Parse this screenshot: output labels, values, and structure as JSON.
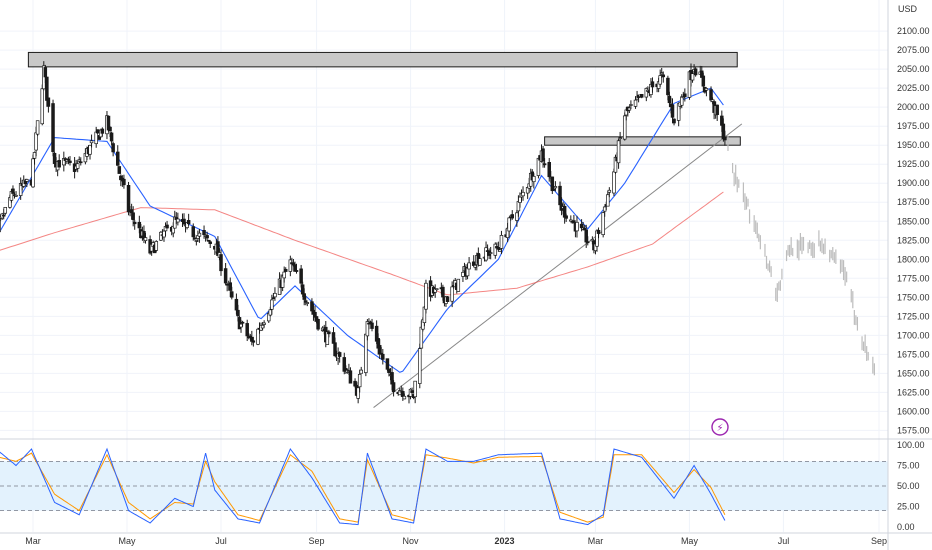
{
  "chart_data": {
    "type": "candlestick",
    "symbol_currency": "USD",
    "price_axis": {
      "range": [
        1565,
        2112
      ],
      "ticks": [
        "2100.00",
        "2075.00",
        "2050.00",
        "2025.00",
        "2000.00",
        "1975.00",
        "1950.00",
        "1925.00",
        "1900.00",
        "1875.00",
        "1850.00",
        "1825.00",
        "1800.00",
        "1775.00",
        "1750.00",
        "1725.00",
        "1700.00",
        "1675.00",
        "1650.00",
        "1625.00",
        "1600.00",
        "1575.00"
      ]
    },
    "x_axis": {
      "labels": [
        "Mar",
        "May",
        "Jul",
        "Sep",
        "Nov",
        "2023",
        "Mar",
        "May",
        "Jul",
        "Sep"
      ],
      "label_dates": [
        "2022-03-01",
        "2022-05-01",
        "2022-07-01",
        "2022-09-01",
        "2022-11-01",
        "2023-01-01",
        "2023-03-01",
        "2023-05-01",
        "2023-07-01",
        "2023-09-01"
      ],
      "bold_label": "2023"
    },
    "price_path": [
      {
        "date": "2022-01-28",
        "close": 1790
      },
      {
        "date": "2022-02-14",
        "close": 1880
      },
      {
        "date": "2022-02-28",
        "close": 1905
      },
      {
        "date": "2022-03-08",
        "close": 2050
      },
      {
        "date": "2022-03-15",
        "close": 1930
      },
      {
        "date": "2022-03-29",
        "close": 1920
      },
      {
        "date": "2022-04-18",
        "close": 1980
      },
      {
        "date": "2022-05-02",
        "close": 1865
      },
      {
        "date": "2022-05-16",
        "close": 1810
      },
      {
        "date": "2022-06-01",
        "close": 1850
      },
      {
        "date": "2022-06-13",
        "close": 1835
      },
      {
        "date": "2022-06-27",
        "close": 1820
      },
      {
        "date": "2022-07-12",
        "close": 1720
      },
      {
        "date": "2022-07-21",
        "close": 1690
      },
      {
        "date": "2022-08-15",
        "close": 1795
      },
      {
        "date": "2022-09-01",
        "close": 1720
      },
      {
        "date": "2022-09-16",
        "close": 1670
      },
      {
        "date": "2022-09-28",
        "close": 1625
      },
      {
        "date": "2022-10-04",
        "close": 1725
      },
      {
        "date": "2022-10-20",
        "close": 1635
      },
      {
        "date": "2022-11-03",
        "close": 1620
      },
      {
        "date": "2022-11-11",
        "close": 1760
      },
      {
        "date": "2022-11-25",
        "close": 1750
      },
      {
        "date": "2022-12-12",
        "close": 1800
      },
      {
        "date": "2022-12-28",
        "close": 1815
      },
      {
        "date": "2023-01-25",
        "close": 1940
      },
      {
        "date": "2023-02-06",
        "close": 1870
      },
      {
        "date": "2023-02-28",
        "close": 1815
      },
      {
        "date": "2023-03-13",
        "close": 1915
      },
      {
        "date": "2023-03-20",
        "close": 1990
      },
      {
        "date": "2023-04-04",
        "close": 2020
      },
      {
        "date": "2023-04-13",
        "close": 2040
      },
      {
        "date": "2023-04-21",
        "close": 1985
      },
      {
        "date": "2023-05-04",
        "close": 2055
      },
      {
        "date": "2023-05-15",
        "close": 2010
      },
      {
        "date": "2023-05-24",
        "close": 1960
      }
    ],
    "projection_path": [
      {
        "date": "2023-05-24",
        "close": 1960
      },
      {
        "date": "2023-06-01",
        "close": 1900
      },
      {
        "date": "2023-06-14",
        "close": 1840
      },
      {
        "date": "2023-06-27",
        "close": 1755
      },
      {
        "date": "2023-07-05",
        "close": 1815
      },
      {
        "date": "2023-07-26",
        "close": 1820
      },
      {
        "date": "2023-08-10",
        "close": 1780
      },
      {
        "date": "2023-08-20",
        "close": 1700
      },
      {
        "date": "2023-08-29",
        "close": 1655
      }
    ],
    "resistance_zone": {
      "from": "2022-02-26",
      "to": "2023-06-01",
      "price_low": 2053,
      "price_high": 2072
    },
    "support_zone": {
      "from": "2023-01-27",
      "to": "2023-06-03",
      "price_low": 1950,
      "price_high": 1961
    },
    "trendline": {
      "from": {
        "date": "2022-10-08",
        "price": 1605
      },
      "to": {
        "date": "2023-06-04",
        "price": 1978
      }
    },
    "ma_fast_path": [
      {
        "date": "2022-01-28",
        "close": 1800
      },
      {
        "date": "2022-03-15",
        "close": 1960
      },
      {
        "date": "2022-04-18",
        "close": 1955
      },
      {
        "date": "2022-05-16",
        "close": 1870
      },
      {
        "date": "2022-06-27",
        "close": 1830
      },
      {
        "date": "2022-07-26",
        "close": 1720
      },
      {
        "date": "2022-08-18",
        "close": 1765
      },
      {
        "date": "2022-09-21",
        "close": 1700
      },
      {
        "date": "2022-10-26",
        "close": 1650
      },
      {
        "date": "2022-11-25",
        "close": 1735
      },
      {
        "date": "2022-12-28",
        "close": 1800
      },
      {
        "date": "2023-01-25",
        "close": 1910
      },
      {
        "date": "2023-02-24",
        "close": 1840
      },
      {
        "date": "2023-03-20",
        "close": 1900
      },
      {
        "date": "2023-04-21",
        "close": 2005
      },
      {
        "date": "2023-05-15",
        "close": 2025
      },
      {
        "date": "2023-05-24",
        "close": 2000
      }
    ],
    "ma_slow_path": [
      {
        "date": "2022-01-28",
        "close": 1805
      },
      {
        "date": "2022-03-15",
        "close": 1835
      },
      {
        "date": "2022-05-10",
        "close": 1868
      },
      {
        "date": "2022-06-27",
        "close": 1865
      },
      {
        "date": "2022-08-18",
        "close": 1825
      },
      {
        "date": "2022-10-20",
        "close": 1780
      },
      {
        "date": "2022-11-25",
        "close": 1753
      },
      {
        "date": "2023-01-09",
        "close": 1762
      },
      {
        "date": "2023-02-24",
        "close": 1790
      },
      {
        "date": "2023-04-07",
        "close": 1820
      },
      {
        "date": "2023-05-24",
        "close": 1890
      }
    ],
    "oscillator": {
      "range": [
        -6,
        106
      ],
      "ticks": [
        "100.00",
        "75.00",
        "50.00",
        "25.00",
        "0.00"
      ],
      "band": [
        20,
        80
      ],
      "midline": 50,
      "k_path": [
        {
          "date": "2022-01-28",
          "value": 60
        },
        {
          "date": "2022-02-07",
          "value": 92
        },
        {
          "date": "2022-02-18",
          "value": 75
        },
        {
          "date": "2022-02-28",
          "value": 95
        },
        {
          "date": "2022-03-15",
          "value": 30
        },
        {
          "date": "2022-03-31",
          "value": 15
        },
        {
          "date": "2022-04-18",
          "value": 95
        },
        {
          "date": "2022-05-02",
          "value": 20
        },
        {
          "date": "2022-05-16",
          "value": 5
        },
        {
          "date": "2022-06-01",
          "value": 35
        },
        {
          "date": "2022-06-13",
          "value": 25
        },
        {
          "date": "2022-06-21",
          "value": 90
        },
        {
          "date": "2022-06-27",
          "value": 45
        },
        {
          "date": "2022-07-12",
          "value": 10
        },
        {
          "date": "2022-07-26",
          "value": 5
        },
        {
          "date": "2022-08-15",
          "value": 95
        },
        {
          "date": "2022-08-29",
          "value": 60
        },
        {
          "date": "2022-09-16",
          "value": 5
        },
        {
          "date": "2022-09-28",
          "value": 3
        },
        {
          "date": "2022-10-04",
          "value": 90
        },
        {
          "date": "2022-10-20",
          "value": 10
        },
        {
          "date": "2022-11-03",
          "value": 5
        },
        {
          "date": "2022-11-11",
          "value": 95
        },
        {
          "date": "2022-11-25",
          "value": 80
        },
        {
          "date": "2022-12-12",
          "value": 80
        },
        {
          "date": "2022-12-28",
          "value": 88
        },
        {
          "date": "2023-01-25",
          "value": 90
        },
        {
          "date": "2023-02-06",
          "value": 10
        },
        {
          "date": "2023-02-24",
          "value": 3
        },
        {
          "date": "2023-03-06",
          "value": 15
        },
        {
          "date": "2023-03-13",
          "value": 95
        },
        {
          "date": "2023-03-31",
          "value": 85
        },
        {
          "date": "2023-04-21",
          "value": 35
        },
        {
          "date": "2023-05-04",
          "value": 75
        },
        {
          "date": "2023-05-15",
          "value": 40
        },
        {
          "date": "2023-05-24",
          "value": 8
        }
      ],
      "d_path": [
        {
          "date": "2022-01-28",
          "value": 55
        },
        {
          "date": "2022-02-07",
          "value": 85
        },
        {
          "date": "2022-02-18",
          "value": 80
        },
        {
          "date": "2022-02-28",
          "value": 90
        },
        {
          "date": "2022-03-15",
          "value": 40
        },
        {
          "date": "2022-03-31",
          "value": 20
        },
        {
          "date": "2022-04-18",
          "value": 88
        },
        {
          "date": "2022-05-02",
          "value": 30
        },
        {
          "date": "2022-05-16",
          "value": 10
        },
        {
          "date": "2022-06-01",
          "value": 30
        },
        {
          "date": "2022-06-13",
          "value": 28
        },
        {
          "date": "2022-06-21",
          "value": 80
        },
        {
          "date": "2022-06-27",
          "value": 55
        },
        {
          "date": "2022-07-12",
          "value": 15
        },
        {
          "date": "2022-07-26",
          "value": 8
        },
        {
          "date": "2022-08-15",
          "value": 88
        },
        {
          "date": "2022-08-29",
          "value": 68
        },
        {
          "date": "2022-09-16",
          "value": 10
        },
        {
          "date": "2022-09-28",
          "value": 6
        },
        {
          "date": "2022-10-04",
          "value": 82
        },
        {
          "date": "2022-10-20",
          "value": 15
        },
        {
          "date": "2022-11-03",
          "value": 8
        },
        {
          "date": "2022-11-11",
          "value": 88
        },
        {
          "date": "2022-11-25",
          "value": 84
        },
        {
          "date": "2022-12-12",
          "value": 78
        },
        {
          "date": "2022-12-28",
          "value": 85
        },
        {
          "date": "2023-01-25",
          "value": 86
        },
        {
          "date": "2023-02-06",
          "value": 18
        },
        {
          "date": "2023-02-24",
          "value": 6
        },
        {
          "date": "2023-03-06",
          "value": 12
        },
        {
          "date": "2023-03-13",
          "value": 88
        },
        {
          "date": "2023-03-31",
          "value": 88
        },
        {
          "date": "2023-04-21",
          "value": 42
        },
        {
          "date": "2023-05-04",
          "value": 70
        },
        {
          "date": "2023-05-15",
          "value": 48
        },
        {
          "date": "2023-05-24",
          "value": 15
        }
      ]
    },
    "colors": {
      "up_candle": "#ffffff",
      "down_candle": "#1a1a1a",
      "wick": "#1a1a1a",
      "projection_bars": "#bdbdbd",
      "ma_fast": "#2962ff",
      "ma_slow": "#ef5350",
      "zone_fill": "#c8c8c8",
      "zone_border": "#1a1a1a",
      "trendline": "#888888",
      "osc_k": "#2962ff",
      "osc_d": "#ff9800",
      "osc_band": "#e3f2fd",
      "grid": "#f0f3fa",
      "axis_text": "#333333",
      "badge": "#9c27b0"
    },
    "grid": true
  },
  "badge_icon": "lightning-bolt-icon"
}
